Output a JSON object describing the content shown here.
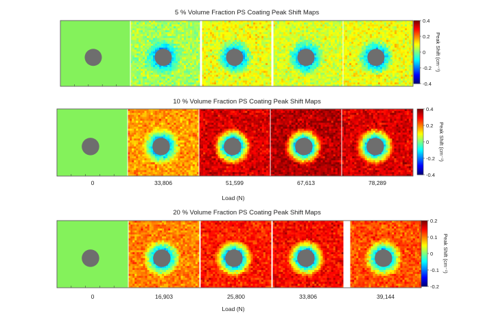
{
  "figure": "peak-shift-maps",
  "chart_data": [
    {
      "type": "heatmap",
      "title": "5 % Volume Fraction PS Coating Peak Shift Maps",
      "colorbar": {
        "label": "Peak Shift (cm⁻¹)",
        "min": -0.4,
        "max": 0.4,
        "ticks": [
          "0.4",
          "0.2",
          "0",
          "-0.2",
          "-0.4"
        ]
      },
      "xlabel": "",
      "loads": [],
      "panels": [
        {
          "mean_shift": 0.0,
          "uniform": true
        },
        {
          "mean_shift": 0.03
        },
        {
          "mean_shift": 0.09
        },
        {
          "mean_shift": 0.07
        },
        {
          "mean_shift": 0.09
        }
      ]
    },
    {
      "type": "heatmap",
      "title": "10 % Volume Fraction PS Coating Peak Shift Maps",
      "colorbar": {
        "label": "Peak Shift (cm⁻¹)",
        "min": -0.4,
        "max": 0.4,
        "ticks": [
          "0.4",
          "0.2",
          "0",
          "-0.2",
          "-0.4"
        ]
      },
      "xlabel": "Load (N)",
      "loads": [
        "0",
        "33,806",
        "51,599",
        "67,613",
        "78,289"
      ],
      "panels": [
        {
          "mean_shift": 0.0,
          "uniform": true
        },
        {
          "mean_shift": 0.18
        },
        {
          "mean_shift": 0.33
        },
        {
          "mean_shift": 0.36
        },
        {
          "mean_shift": 0.33
        }
      ]
    },
    {
      "type": "heatmap",
      "title": "20 % Volume Fraction PS Coating Peak Shift Maps",
      "colorbar": {
        "label": "Peak Shift (cm⁻¹)",
        "min": -0.2,
        "max": 0.2,
        "ticks": [
          "0.2",
          "0.1",
          "0",
          "-0.1",
          "-0.2"
        ]
      },
      "xlabel": "Load (N)",
      "loads": [
        "0",
        "16,903",
        "25,800",
        "33,806",
        "39,144"
      ],
      "panels": [
        {
          "mean_shift": 0.0,
          "uniform": true
        },
        {
          "mean_shift": 0.1
        },
        {
          "mean_shift": 0.14
        },
        {
          "mean_shift": 0.15
        },
        {
          "mean_shift": 0.12
        }
      ]
    }
  ],
  "colors": {
    "hole": "#6e6e6e",
    "uniform": "#84f25b"
  }
}
